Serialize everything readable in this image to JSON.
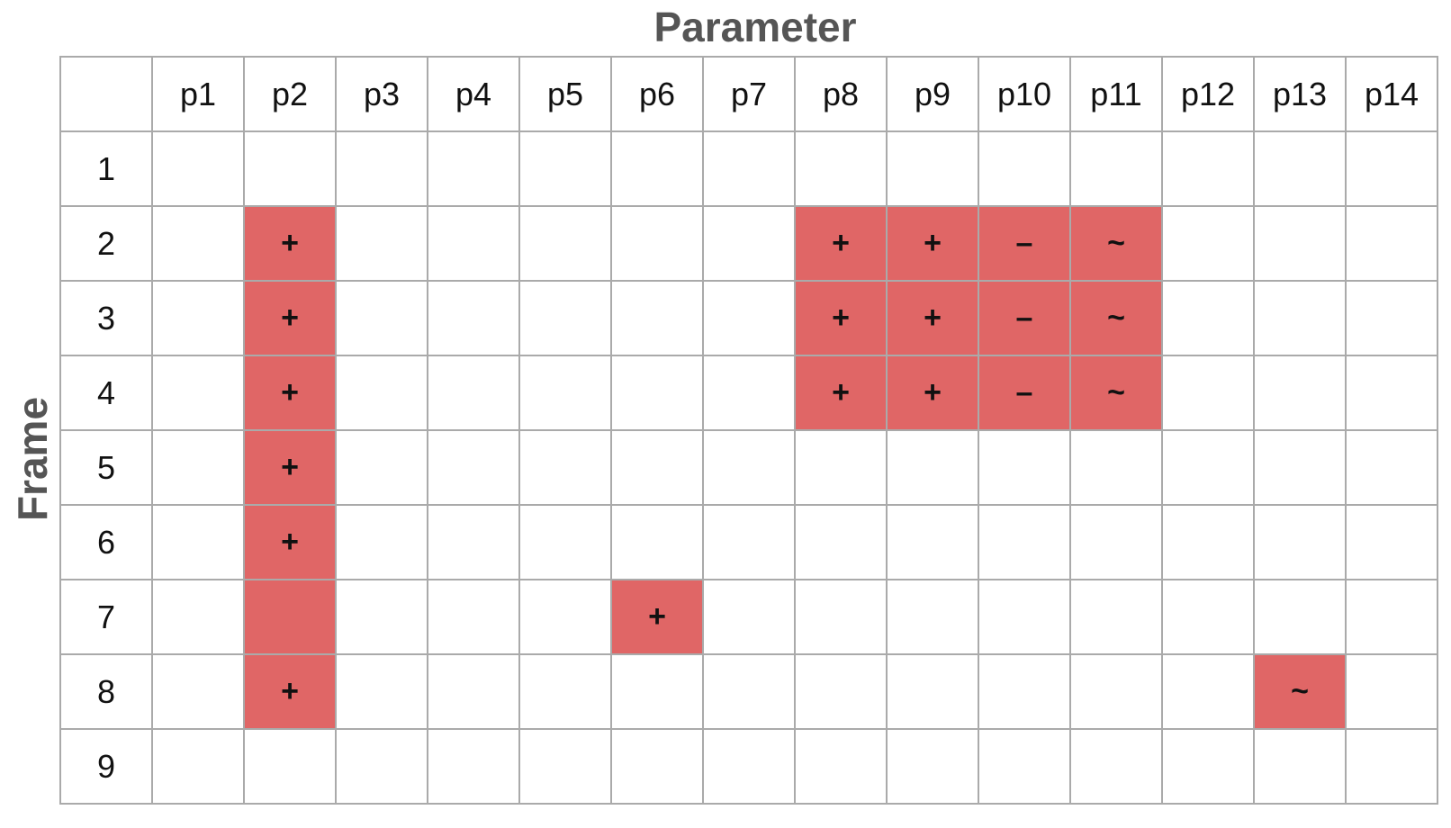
{
  "chart_data": {
    "type": "table",
    "column_axis_title": "Parameter",
    "row_axis_title": "Frame",
    "columns": [
      "p1",
      "p2",
      "p3",
      "p4",
      "p5",
      "p6",
      "p7",
      "p8",
      "p9",
      "p10",
      "p11",
      "p12",
      "p13",
      "p14"
    ],
    "rows": [
      "1",
      "2",
      "3",
      "4",
      "5",
      "6",
      "7",
      "8",
      "9"
    ],
    "highlight_color": "#e06666",
    "cells": [
      [
        "",
        "",
        "",
        "",
        "",
        "",
        "",
        "",
        "",
        "",
        "",
        "",
        "",
        ""
      ],
      [
        "",
        "+",
        "",
        "",
        "",
        "",
        "",
        "+",
        "+",
        "–",
        "~",
        "",
        "",
        ""
      ],
      [
        "",
        "+",
        "",
        "",
        "",
        "",
        "",
        "+",
        "+",
        "–",
        "~",
        "",
        "",
        ""
      ],
      [
        "",
        "+",
        "",
        "",
        "",
        "",
        "",
        "+",
        "+",
        "–",
        "~",
        "",
        "",
        ""
      ],
      [
        "",
        "+",
        "",
        "",
        "",
        "",
        "",
        "",
        "",
        "",
        "",
        "",
        "",
        ""
      ],
      [
        "",
        "+",
        "",
        "",
        "",
        "",
        "",
        "",
        "",
        "",
        "",
        "",
        "",
        ""
      ],
      [
        "",
        "",
        "",
        "",
        "",
        "+",
        "",
        "",
        "",
        "",
        "",
        "",
        "",
        ""
      ],
      [
        "",
        "+",
        "",
        "",
        "",
        "",
        "",
        "",
        "",
        "",
        "",
        "",
        "~",
        ""
      ],
      [
        "",
        "",
        "",
        "",
        "",
        "",
        "",
        "",
        "",
        "",
        "",
        "",
        "",
        ""
      ]
    ],
    "highlighted": [
      [
        false,
        false,
        false,
        false,
        false,
        false,
        false,
        false,
        false,
        false,
        false,
        false,
        false,
        false
      ],
      [
        false,
        true,
        false,
        false,
        false,
        false,
        false,
        true,
        true,
        true,
        true,
        false,
        false,
        false
      ],
      [
        false,
        true,
        false,
        false,
        false,
        false,
        false,
        true,
        true,
        true,
        true,
        false,
        false,
        false
      ],
      [
        false,
        true,
        false,
        false,
        false,
        false,
        false,
        true,
        true,
        true,
        true,
        false,
        false,
        false
      ],
      [
        false,
        true,
        false,
        false,
        false,
        false,
        false,
        false,
        false,
        false,
        false,
        false,
        false,
        false
      ],
      [
        false,
        true,
        false,
        false,
        false,
        false,
        false,
        false,
        false,
        false,
        false,
        false,
        false,
        false
      ],
      [
        false,
        true,
        false,
        false,
        false,
        true,
        false,
        false,
        false,
        false,
        false,
        false,
        false,
        false
      ],
      [
        false,
        true,
        false,
        false,
        false,
        false,
        false,
        false,
        false,
        false,
        false,
        false,
        true,
        false
      ],
      [
        false,
        false,
        false,
        false,
        false,
        false,
        false,
        false,
        false,
        false,
        false,
        false,
        false,
        false
      ]
    ]
  }
}
